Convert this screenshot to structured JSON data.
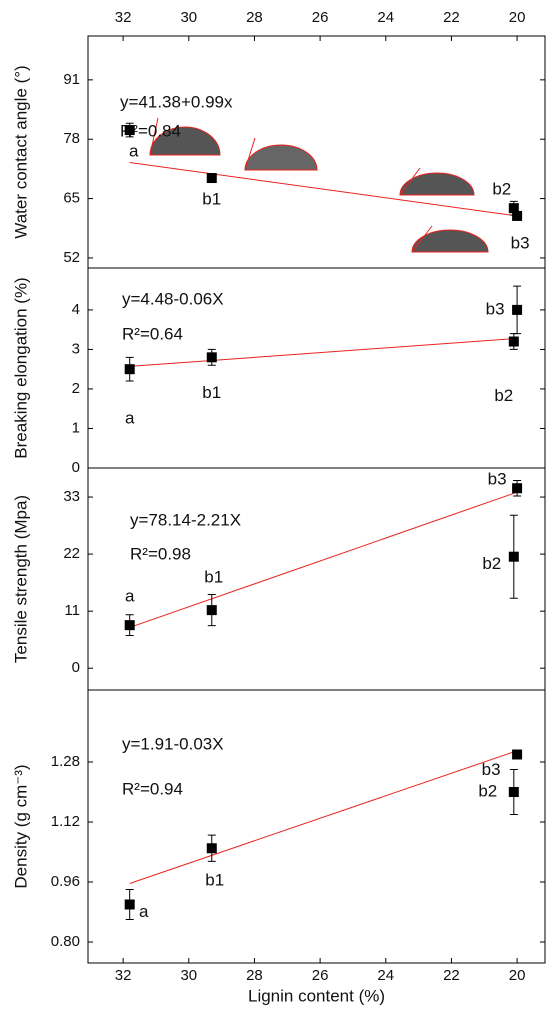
{
  "chart_data": [
    {
      "type": "scatter",
      "ylabel": "Water contact angle (°)",
      "equation": "y=41.38+0.99x",
      "r2": "R²=0.84",
      "x": [
        31.8,
        29.3,
        20.1,
        20.0
      ],
      "values": [
        80.0,
        69.5,
        62.9,
        61.2
      ],
      "errors": [
        1.5,
        0.4,
        1.5,
        0.8
      ],
      "point_labels": [
        "a",
        "b1",
        "b2",
        "b3"
      ],
      "color": "#000000",
      "trend": {
        "x": [
          31.8,
          20.0
        ],
        "y": [
          72.9,
          61.2
        ],
        "color": "#e8231f"
      },
      "xlim": [
        33.07,
        19.15
      ],
      "xticks": [
        32,
        30,
        28,
        26,
        24,
        22,
        20
      ],
      "ylim": [
        49.8,
        100.6
      ],
      "yticks": [
        52,
        65,
        78,
        91
      ]
    },
    {
      "type": "scatter",
      "ylabel": "Breaking elongation (%)",
      "equation": "y=4.48-0.06X",
      "r2": "R²=0.64",
      "x": [
        31.8,
        29.3,
        20.1,
        20.0
      ],
      "values": [
        2.5,
        2.8,
        3.2,
        4.0
      ],
      "errors": [
        0.3,
        0.2,
        0.2,
        0.6
      ],
      "point_labels": [
        "a",
        "b1",
        "b2",
        "b3"
      ],
      "color": "#000000",
      "trend": {
        "x": [
          31.8,
          20.0
        ],
        "y": [
          2.57,
          3.28
        ],
        "color": "#e8231f"
      },
      "xlim": [
        33.07,
        19.15
      ],
      "ylim": [
        0,
        5.06
      ],
      "yticks": [
        0,
        1,
        2,
        3,
        4
      ]
    },
    {
      "type": "scatter",
      "ylabel": "Tensile strength (Mpa)",
      "equation": "y=78.14-2.21X",
      "r2": "R²=0.98",
      "x": [
        31.8,
        29.3,
        20.1,
        20.0
      ],
      "values": [
        8.3,
        11.2,
        21.5,
        34.7
      ],
      "errors": [
        2.0,
        3.0,
        8.0,
        1.5
      ],
      "point_labels": [
        "a",
        "b1",
        "b2",
        "b3"
      ],
      "color": "#000000",
      "trend": {
        "x": [
          31.8,
          20.0
        ],
        "y": [
          7.86,
          33.94
        ],
        "color": "#e8231f"
      },
      "xlim": [
        33.07,
        19.15
      ],
      "ylim": [
        -4.2,
        38.6
      ],
      "yticks": [
        0,
        11,
        22,
        33
      ]
    },
    {
      "type": "scatter",
      "ylabel": "Density (g cm⁻³)",
      "equation": "y=1.91-0.03X",
      "r2": "R²=0.94",
      "x": [
        31.8,
        29.3,
        20.1,
        20.0
      ],
      "values": [
        0.9,
        1.05,
        1.2,
        1.3
      ],
      "errors": [
        0.04,
        0.035,
        0.06,
        0.01
      ],
      "point_labels": [
        "a",
        "b1",
        "b2",
        "b3"
      ],
      "color": "#000000",
      "trend": {
        "x": [
          31.8,
          20.0
        ],
        "y": [
          0.956,
          1.31
        ],
        "color": "#e8231f"
      },
      "xlim": [
        33.07,
        19.15
      ],
      "xticks": [
        32,
        30,
        28,
        26,
        24,
        22,
        20
      ],
      "xlabel": "Lignin content (%)",
      "ylim": [
        0.744,
        1.472
      ],
      "yticks": [
        {
          "value": 0.8,
          "label": "0.80"
        },
        {
          "value": 0.96,
          "label": "0.96"
        },
        {
          "value": 1.12,
          "label": "1.12"
        },
        {
          "value": 1.28,
          "label": "1.28"
        }
      ]
    }
  ]
}
